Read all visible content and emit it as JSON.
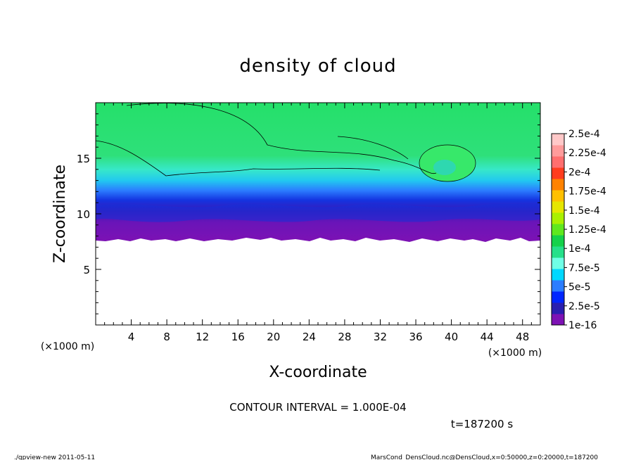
{
  "chart_data": {
    "type": "heatmap",
    "title": "density of cloud",
    "xlabel": "X-coordinate",
    "ylabel": "Z-coordinate",
    "x_unit": "(×1000 m)",
    "y_unit": "(×1000 m)",
    "xlim": [
      0,
      50
    ],
    "ylim": [
      0,
      20
    ],
    "x_ticks": [
      "4",
      "8",
      "12",
      "16",
      "20",
      "24",
      "28",
      "32",
      "36",
      "40",
      "44",
      "48"
    ],
    "y_ticks": [
      "5",
      "10",
      "15"
    ],
    "colorbar": {
      "labels": [
        "1e-16",
        "2.5e-5",
        "5e-5",
        "7.5e-5",
        "1e-4",
        "1.25e-4",
        "1.5e-4",
        "1.75e-4",
        "2e-4",
        "2.25e-4",
        "2.5e-4"
      ],
      "colors": [
        "#7d12b4",
        "#2a1fb0",
        "#0026ff",
        "#2b7dff",
        "#00d8ff",
        "#6fffe6",
        "#25e08a",
        "#14d24a",
        "#5fe81e",
        "#aaf000",
        "#e6e600",
        "#ffc000",
        "#ff8200",
        "#ff3c1e",
        "#ff6e6e",
        "#ff9b9b",
        "#ffc8c8"
      ]
    },
    "cloud_layers": [
      {
        "level": "1e-16",
        "z_range": [
          7.5,
          9.5
        ]
      },
      {
        "level": "2.5e-5",
        "z_range": [
          9.5,
          11
        ]
      },
      {
        "level": "5e-5",
        "z_range": [
          11,
          12.5
        ]
      },
      {
        "level": "7.5e-5",
        "z_range": [
          12.5,
          14
        ]
      },
      {
        "level": "1e-4",
        "z_range": [
          14,
          20
        ]
      }
    ],
    "contour_interval_text": "CONTOUR INTERVAL = 1.000E-04",
    "time_text": "t=187200 s"
  },
  "footer": {
    "left": "./gpview-new   2011-05-11",
    "right": "MarsCond_DensCloud.nc@DensCloud,x=0:50000,z=0:20000,t=187200"
  }
}
